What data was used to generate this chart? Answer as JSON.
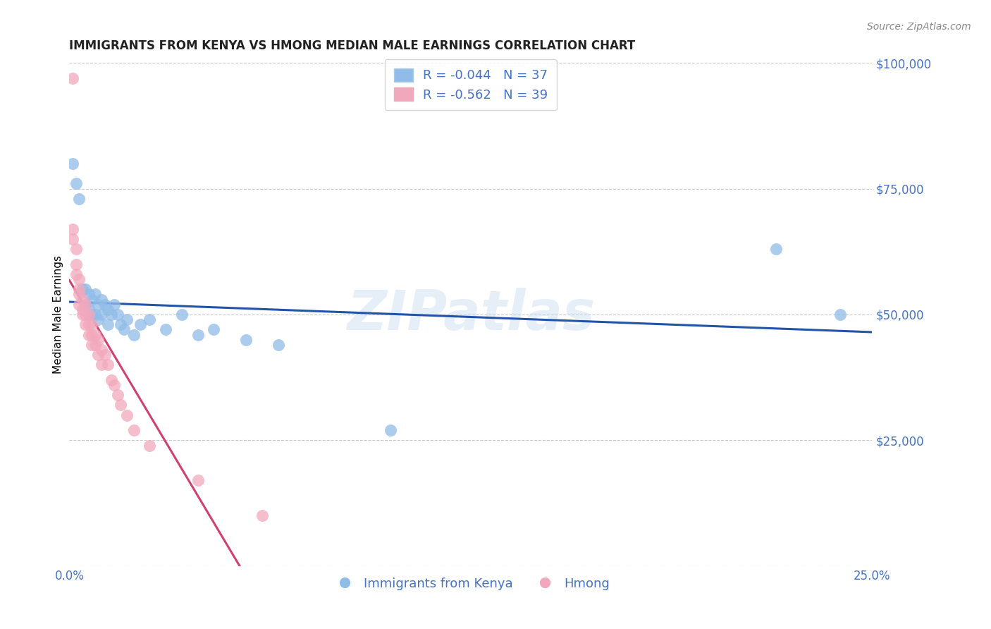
{
  "title": "IMMIGRANTS FROM KENYA VS HMONG MEDIAN MALE EARNINGS CORRELATION CHART",
  "source": "Source: ZipAtlas.com",
  "ylabel": "Median Male Earnings",
  "x_min": 0.0,
  "x_max": 0.25,
  "y_min": 0,
  "y_max": 100000,
  "x_ticks": [
    0.0,
    0.05,
    0.1,
    0.15,
    0.2,
    0.25
  ],
  "x_tick_labels": [
    "0.0%",
    "",
    "",
    "",
    "",
    "25.0%"
  ],
  "y_ticks": [
    0,
    25000,
    50000,
    75000,
    100000
  ],
  "y_tick_labels": [
    "",
    "$25,000",
    "$50,000",
    "$75,000",
    "$100,000"
  ],
  "kenya_R": -0.044,
  "kenya_N": 37,
  "hmong_R": -0.562,
  "hmong_N": 39,
  "kenya_color": "#90bce8",
  "hmong_color": "#f2a8bc",
  "kenya_line_color": "#2255aa",
  "hmong_line_color": "#d04070",
  "kenya_scatter": [
    [
      0.001,
      80000
    ],
    [
      0.002,
      76000
    ],
    [
      0.003,
      73000
    ],
    [
      0.004,
      55000
    ],
    [
      0.005,
      55000
    ],
    [
      0.005,
      52000
    ],
    [
      0.006,
      54000
    ],
    [
      0.006,
      51000
    ],
    [
      0.007,
      53000
    ],
    [
      0.007,
      50000
    ],
    [
      0.008,
      54000
    ],
    [
      0.008,
      50000
    ],
    [
      0.009,
      52000
    ],
    [
      0.009,
      49000
    ],
    [
      0.01,
      53000
    ],
    [
      0.01,
      50000
    ],
    [
      0.011,
      52000
    ],
    [
      0.012,
      51000
    ],
    [
      0.012,
      48000
    ],
    [
      0.013,
      50000
    ],
    [
      0.014,
      52000
    ],
    [
      0.015,
      50000
    ],
    [
      0.016,
      48000
    ],
    [
      0.017,
      47000
    ],
    [
      0.018,
      49000
    ],
    [
      0.02,
      46000
    ],
    [
      0.022,
      48000
    ],
    [
      0.025,
      49000
    ],
    [
      0.03,
      47000
    ],
    [
      0.035,
      50000
    ],
    [
      0.04,
      46000
    ],
    [
      0.045,
      47000
    ],
    [
      0.055,
      45000
    ],
    [
      0.065,
      44000
    ],
    [
      0.1,
      27000
    ],
    [
      0.22,
      63000
    ],
    [
      0.24,
      50000
    ]
  ],
  "hmong_scatter": [
    [
      0.001,
      97000
    ],
    [
      0.001,
      67000
    ],
    [
      0.001,
      65000
    ],
    [
      0.002,
      63000
    ],
    [
      0.002,
      60000
    ],
    [
      0.002,
      58000
    ],
    [
      0.003,
      57000
    ],
    [
      0.003,
      55000
    ],
    [
      0.003,
      54000
    ],
    [
      0.003,
      52000
    ],
    [
      0.004,
      53000
    ],
    [
      0.004,
      51000
    ],
    [
      0.004,
      50000
    ],
    [
      0.005,
      52000
    ],
    [
      0.005,
      50000
    ],
    [
      0.005,
      48000
    ],
    [
      0.006,
      50000
    ],
    [
      0.006,
      48000
    ],
    [
      0.006,
      46000
    ],
    [
      0.007,
      48000
    ],
    [
      0.007,
      46000
    ],
    [
      0.007,
      44000
    ],
    [
      0.008,
      46000
    ],
    [
      0.008,
      44000
    ],
    [
      0.009,
      45000
    ],
    [
      0.009,
      42000
    ],
    [
      0.01,
      43000
    ],
    [
      0.01,
      40000
    ],
    [
      0.011,
      42000
    ],
    [
      0.012,
      40000
    ],
    [
      0.013,
      37000
    ],
    [
      0.014,
      36000
    ],
    [
      0.015,
      34000
    ],
    [
      0.016,
      32000
    ],
    [
      0.018,
      30000
    ],
    [
      0.02,
      27000
    ],
    [
      0.025,
      24000
    ],
    [
      0.04,
      17000
    ],
    [
      0.06,
      10000
    ]
  ],
  "watermark": "ZIPatlas",
  "background_color": "#ffffff",
  "grid_color": "#c8c8c8",
  "label_color": "#4472c4",
  "title_color": "#222222"
}
